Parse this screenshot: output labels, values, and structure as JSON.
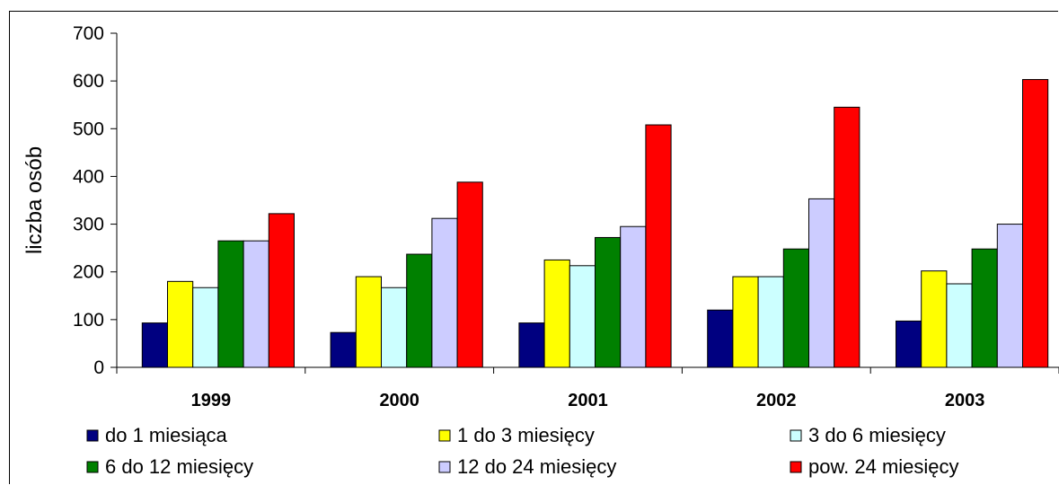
{
  "chart_data": {
    "type": "bar",
    "title": "",
    "xlabel": "",
    "ylabel": "liczba osób",
    "ylim": [
      0,
      700
    ],
    "yticks": [
      0,
      100,
      200,
      300,
      400,
      500,
      600,
      700
    ],
    "grid": false,
    "legend_position": "bottom",
    "categories": [
      "1999",
      "2000",
      "2001",
      "2002",
      "2003"
    ],
    "series": [
      {
        "name": "do 1 miesiąca",
        "color": "#000080",
        "values": [
          93,
          73,
          93,
          120,
          97
        ]
      },
      {
        "name": "1 do 3 miesięcy",
        "color": "#ffff00",
        "values": [
          180,
          190,
          225,
          190,
          202
        ]
      },
      {
        "name": "3 do 6 miesięcy",
        "color": "#ccffff",
        "values": [
          167,
          167,
          213,
          190,
          175
        ]
      },
      {
        "name": "6 do 12 miesięcy",
        "color": "#008000",
        "values": [
          265,
          237,
          272,
          248,
          248
        ]
      },
      {
        "name": "12 do 24 miesięcy",
        "color": "#ccccff",
        "values": [
          265,
          312,
          295,
          353,
          300
        ]
      },
      {
        "name": "pow. 24 miesięcy",
        "color": "#ff0000",
        "values": [
          322,
          388,
          508,
          545,
          603
        ]
      }
    ]
  }
}
